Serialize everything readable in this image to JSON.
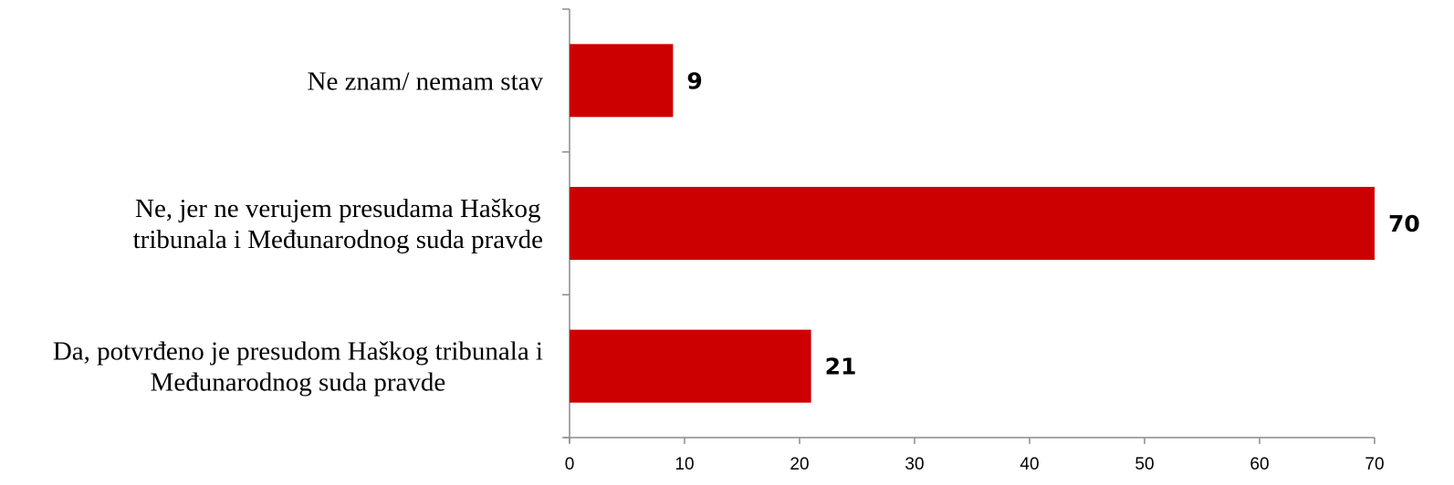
{
  "chart_data": {
    "type": "bar",
    "orientation": "horizontal",
    "categories": [
      [
        "Ne znam/ nemam stav"
      ],
      [
        "Ne, jer ne verujem presudama Haškog",
        "tribunala i Međunarodnog suda pravde"
      ],
      [
        "Da, potvrđeno je presudom Haškog tribunala i",
        "Međunarodnog suda pravde"
      ]
    ],
    "values": [
      9,
      70,
      21
    ],
    "xlim": [
      0,
      70
    ],
    "xticks": [
      0,
      10,
      20,
      30,
      40,
      50,
      60,
      70
    ],
    "grid": false,
    "legend": "none",
    "bar_color": "#cc0000",
    "data_labels": true
  }
}
